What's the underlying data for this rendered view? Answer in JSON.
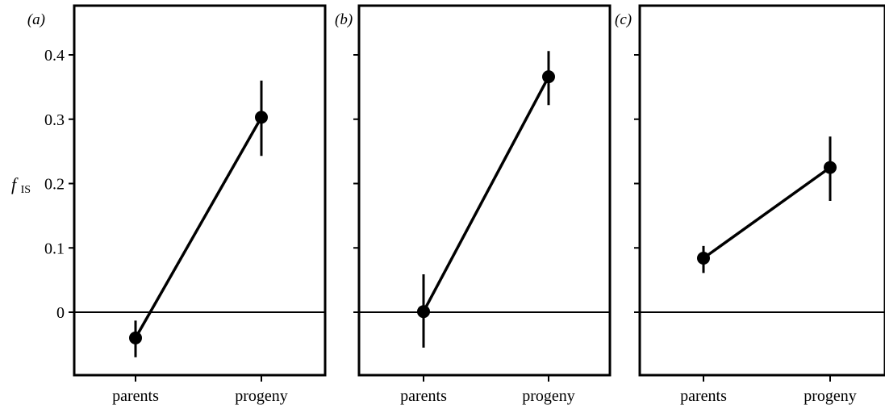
{
  "figure": {
    "ylabel_main": "f",
    "ylabel_sub": "IS"
  },
  "chart_data": [
    {
      "type": "line",
      "panel_label": "(a)",
      "categories": [
        "parents",
        "progeny"
      ],
      "values": [
        -0.04,
        0.303
      ],
      "error_low": [
        -0.07,
        0.243
      ],
      "error_high": [
        -0.013,
        0.36
      ],
      "ylim": [
        -0.1,
        0.47
      ],
      "yticks": [
        0,
        0.1,
        0.2,
        0.3,
        0.4
      ],
      "ytick_labels": [
        "0",
        "0.1",
        "0.2",
        "0.3",
        "0.4"
      ],
      "reference_line": 0
    },
    {
      "type": "line",
      "panel_label": "(b)",
      "categories": [
        "parents",
        "progeny"
      ],
      "values": [
        0.001,
        0.366
      ],
      "error_low": [
        -0.055,
        0.322
      ],
      "error_high": [
        0.059,
        0.406
      ],
      "ylim": [
        -0.1,
        0.47
      ],
      "yticks": [
        0,
        0.1,
        0.2,
        0.3,
        0.4
      ],
      "ytick_labels": [],
      "reference_line": 0
    },
    {
      "type": "line",
      "panel_label": "(c)",
      "categories": [
        "parents",
        "progeny"
      ],
      "values": [
        0.084,
        0.225
      ],
      "error_low": [
        0.061,
        0.173
      ],
      "error_high": [
        0.103,
        0.273
      ],
      "ylim": [
        -0.1,
        0.47
      ],
      "yticks": [
        0,
        0.1,
        0.2,
        0.3,
        0.4
      ],
      "ytick_labels": [],
      "reference_line": 0
    }
  ]
}
